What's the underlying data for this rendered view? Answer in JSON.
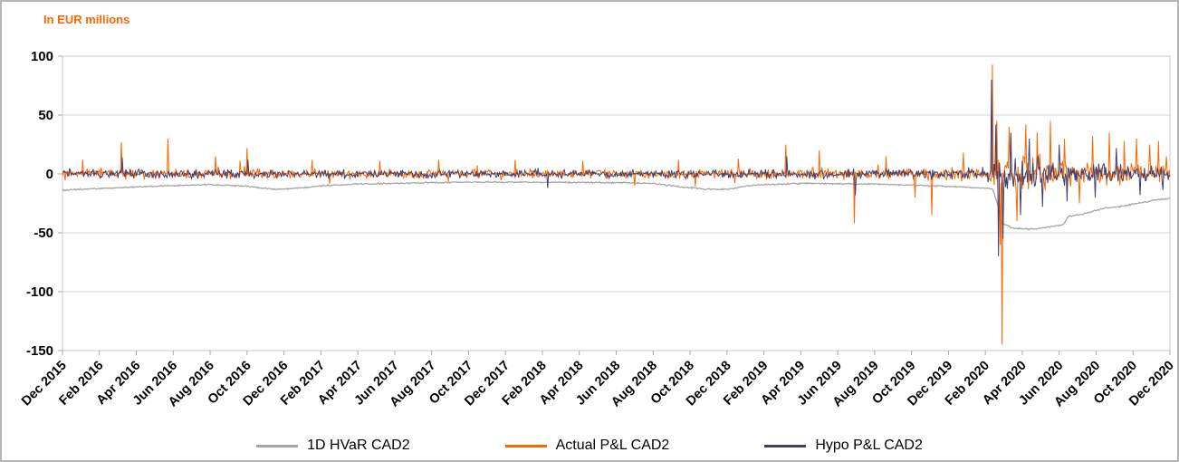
{
  "chart_data": {
    "type": "line",
    "title": "In EUR millions",
    "title_color": "#ff6600",
    "x_range": [
      "Dec 2015",
      "Dec 2020"
    ],
    "grid": true,
    "legend_position": "bottom",
    "x_axis": {
      "months_total": 60,
      "samples_per_month": 21,
      "tick_labels": [
        "Dec 2015",
        "Feb 2016",
        "Apr 2016",
        "Jun 2016",
        "Aug 2016",
        "Oct 2016",
        "Dec 2016",
        "Feb 2017",
        "Apr 2017",
        "Jun 2017",
        "Aug 2017",
        "Oct 2017",
        "Dec 2017",
        "Feb 2018",
        "Apr 2018",
        "Jun 2018",
        "Aug 2018",
        "Oct 2018",
        "Dec 2018",
        "Feb 2019",
        "Apr 2019",
        "Jun 2019",
        "Aug 2019",
        "Oct 2019",
        "Dec 2019",
        "Feb 2020",
        "Apr 2020",
        "Jun 2020",
        "Aug 2020",
        "Oct 2020",
        "Dec 2020"
      ]
    },
    "y_axis": {
      "min": -150,
      "max": 100,
      "tick_step": 50,
      "tick_labels": [
        "100",
        "50",
        "0",
        "-50",
        "-100",
        "-150"
      ]
    },
    "series": [
      {
        "name": "1D HVaR CAD2",
        "color": "#a6a6a6",
        "style": "baseline",
        "jitter": 0.7,
        "keypoints": [
          [
            0,
            -14
          ],
          [
            1,
            -13
          ],
          [
            2,
            -12.5
          ],
          [
            4,
            -11
          ],
          [
            6,
            -10
          ],
          [
            8,
            -9
          ],
          [
            10,
            -10.5
          ],
          [
            11.5,
            -13
          ],
          [
            12.5,
            -12.5
          ],
          [
            14,
            -10
          ],
          [
            16,
            -8.5
          ],
          [
            18,
            -8
          ],
          [
            22,
            -7
          ],
          [
            26,
            -7
          ],
          [
            30,
            -7.5
          ],
          [
            32,
            -8
          ],
          [
            33.5,
            -11
          ],
          [
            35,
            -13
          ],
          [
            36,
            -13
          ],
          [
            37.5,
            -9.5
          ],
          [
            40,
            -8
          ],
          [
            43,
            -8.5
          ],
          [
            45,
            -9
          ],
          [
            47,
            -10
          ],
          [
            48.5,
            -11
          ],
          [
            50,
            -12
          ],
          [
            50.4,
            -13
          ],
          [
            50.7,
            -28
          ],
          [
            50.9,
            -42
          ],
          [
            51.5,
            -46
          ],
          [
            52.5,
            -47
          ],
          [
            53.5,
            -45
          ],
          [
            54.2,
            -43
          ],
          [
            54.5,
            -36
          ],
          [
            55.3,
            -34
          ],
          [
            56,
            -31
          ],
          [
            56.5,
            -29
          ],
          [
            57.2,
            -28
          ],
          [
            57.9,
            -26
          ],
          [
            58.6,
            -24
          ],
          [
            59.3,
            -22
          ],
          [
            60,
            -21
          ]
        ]
      },
      {
        "name": "Actual P&L CAD2",
        "color": "#ff6600",
        "style": "noise",
        "amplitude_keypoints": [
          [
            0,
            4
          ],
          [
            12,
            3.6
          ],
          [
            24,
            3.4
          ],
          [
            36,
            3.8
          ],
          [
            46,
            4.5
          ],
          [
            50,
            5
          ],
          [
            50.5,
            13
          ],
          [
            52,
            15
          ],
          [
            54,
            11
          ],
          [
            56,
            9
          ],
          [
            60,
            7.5
          ]
        ],
        "spikes": [
          [
            1.1,
            12
          ],
          [
            3.2,
            27
          ],
          [
            5.7,
            30
          ],
          [
            8.3,
            15
          ],
          [
            10,
            22
          ],
          [
            13.5,
            12
          ],
          [
            17.2,
            11
          ],
          [
            20.4,
            12
          ],
          [
            24.5,
            12
          ],
          [
            28.2,
            11
          ],
          [
            31,
            -10
          ],
          [
            33.4,
            12
          ],
          [
            36.6,
            13
          ],
          [
            39.2,
            25
          ],
          [
            41,
            20
          ],
          [
            42.9,
            -42
          ],
          [
            44.6,
            15
          ],
          [
            46.2,
            -20
          ],
          [
            47.1,
            -35
          ],
          [
            48.8,
            18
          ],
          [
            50.4,
            93
          ],
          [
            50.6,
            45
          ],
          [
            50.8,
            -60
          ],
          [
            50.9,
            -145
          ],
          [
            51.3,
            40
          ],
          [
            51.7,
            -40
          ],
          [
            52.2,
            42
          ],
          [
            52.8,
            35
          ],
          [
            53.5,
            45
          ],
          [
            54.3,
            30
          ],
          [
            55.1,
            -25
          ],
          [
            55.8,
            32
          ],
          [
            56.7,
            35
          ],
          [
            57.5,
            28
          ],
          [
            58.2,
            30
          ],
          [
            58.9,
            25
          ],
          [
            59.4,
            28
          ],
          [
            59.8,
            15
          ]
        ]
      },
      {
        "name": "Hypo P&L CAD2",
        "color": "#3f3f6e",
        "style": "noise",
        "amplitude_keypoints": [
          [
            0,
            3.4
          ],
          [
            12,
            3.2
          ],
          [
            24,
            3
          ],
          [
            36,
            3.4
          ],
          [
            46,
            4
          ],
          [
            50,
            4.5
          ],
          [
            50.5,
            12
          ],
          [
            52,
            13
          ],
          [
            54,
            10
          ],
          [
            56,
            8.5
          ],
          [
            60,
            7
          ]
        ],
        "spikes": [
          [
            3.25,
            14
          ],
          [
            10.05,
            12
          ],
          [
            26.3,
            -12
          ],
          [
            39.25,
            15
          ],
          [
            42.95,
            -18
          ],
          [
            50.35,
            80
          ],
          [
            50.55,
            42
          ],
          [
            50.7,
            -70
          ],
          [
            50.95,
            -55
          ],
          [
            51.4,
            35
          ],
          [
            51.9,
            -35
          ],
          [
            52.4,
            30
          ],
          [
            53.1,
            -28
          ],
          [
            54,
            25
          ],
          [
            55.95,
            -20
          ],
          [
            57.1,
            22
          ],
          [
            58.4,
            -18
          ]
        ]
      }
    ]
  },
  "legend": {
    "items": [
      {
        "label": "1D HVaR CAD2",
        "color": "#a6a6a6"
      },
      {
        "label": "Actual P&L CAD2",
        "color": "#ff6600"
      },
      {
        "label": "Hypo P&L CAD2",
        "color": "#3f3f6e"
      }
    ]
  }
}
